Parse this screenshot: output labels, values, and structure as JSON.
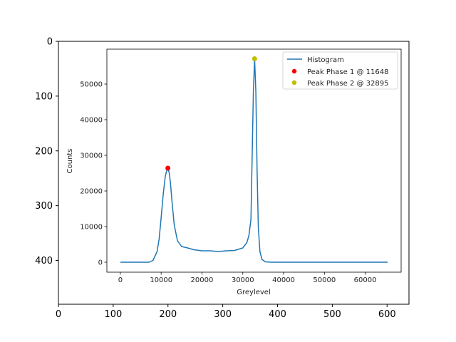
{
  "outer_axes": {
    "x_ticks": [
      "0",
      "100",
      "200",
      "300",
      "400",
      "500",
      "600"
    ],
    "y_ticks": [
      "0",
      "100",
      "200",
      "300",
      "400"
    ],
    "xlim": [
      0,
      640
    ],
    "ylim": [
      480,
      0
    ]
  },
  "chart_data": {
    "type": "line",
    "title": "",
    "xlabel": "Greylevel",
    "ylabel": "Counts",
    "xlim": [
      -3300,
      68800
    ],
    "ylim": [
      -2800,
      59800
    ],
    "x_ticks": [
      0,
      10000,
      20000,
      30000,
      40000,
      50000,
      60000
    ],
    "y_ticks": [
      0,
      10000,
      20000,
      30000,
      40000,
      50000
    ],
    "grid": false,
    "legend_position": "top-right",
    "colors": {
      "line": "#1f77b4",
      "peak1": "#ff0000",
      "peak2": "#bfbf00"
    },
    "series": [
      {
        "name": "Histogram",
        "kind": "line",
        "x": [
          0,
          7000,
          8000,
          9000,
          9500,
          10000,
          10500,
          11000,
          11300,
          11648,
          12000,
          12300,
          12700,
          13200,
          14000,
          15000,
          16500,
          18000,
          20000,
          22000,
          24000,
          26000,
          28000,
          30000,
          31000,
          31500,
          32000,
          32300,
          32600,
          32895,
          33200,
          33500,
          33800,
          34200,
          34700,
          35500,
          37000,
          40000,
          50000,
          60000,
          65500
        ],
        "y": [
          0,
          0,
          500,
          3000,
          6500,
          12500,
          19000,
          24000,
          25500,
          26300,
          25000,
          22000,
          16500,
          10500,
          6000,
          4400,
          4000,
          3500,
          3200,
          3200,
          3000,
          3200,
          3300,
          4000,
          5500,
          7500,
          12000,
          30000,
          48000,
          57000,
          48000,
          26000,
          10000,
          3000,
          800,
          100,
          0,
          0,
          0,
          0,
          0
        ]
      },
      {
        "name": "Peak Phase 1 @ 11648",
        "kind": "point",
        "x": [
          11648
        ],
        "y": [
          26400
        ]
      },
      {
        "name": "Peak Phase 2 @ 32895",
        "kind": "point",
        "x": [
          32895
        ],
        "y": [
          57100
        ]
      }
    ]
  }
}
